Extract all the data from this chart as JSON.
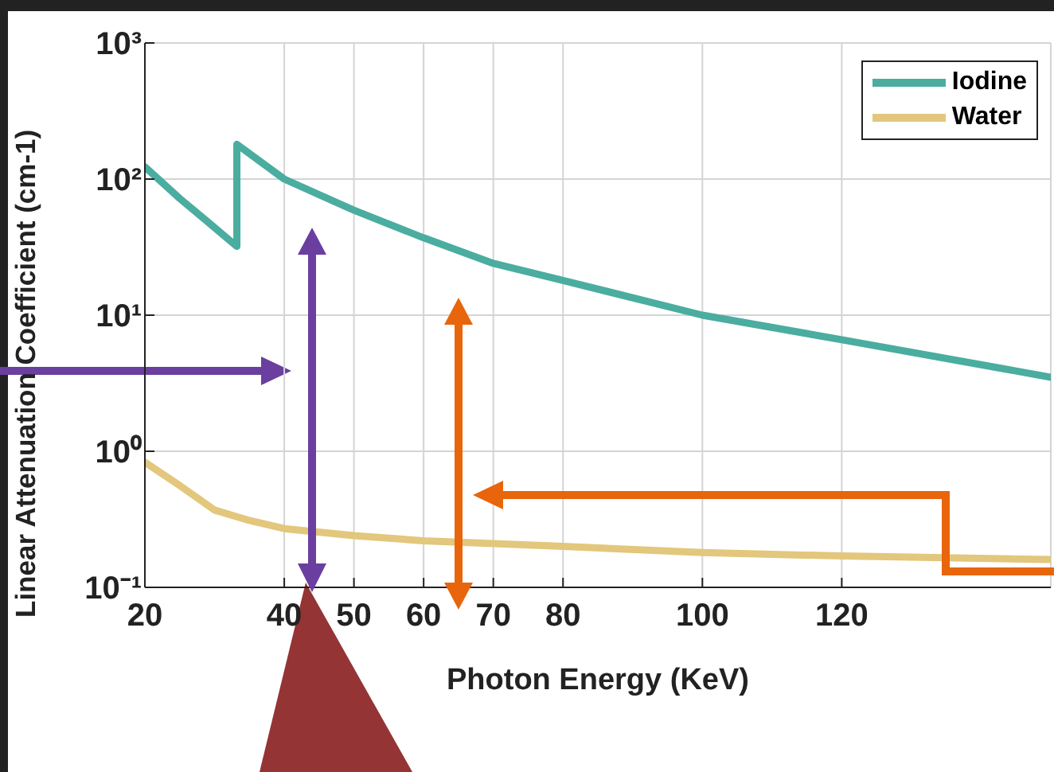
{
  "chart_data": {
    "type": "line",
    "xlabel": "Photon Energy (KeV)",
    "ylabel": "Linear Attenuation Coefficient (cm-1)",
    "xlim": [
      20,
      150
    ],
    "xticks": [
      20,
      40,
      50,
      60,
      70,
      80,
      100,
      120
    ],
    "ylim": [
      0.1,
      1000
    ],
    "yticks": [
      {
        "value": 0.1,
        "label": "10⁻¹"
      },
      {
        "value": 1,
        "label": "10⁰"
      },
      {
        "value": 10,
        "label": "10¹"
      },
      {
        "value": 100,
        "label": "10²"
      },
      {
        "value": 1000,
        "label": "10³"
      }
    ],
    "log": "y",
    "grid": true,
    "legend": "top right",
    "marker": "none",
    "line_style": "solid",
    "series": [
      {
        "name": "Iodine",
        "color": "#4aada0",
        "x": [
          20,
          25,
          30,
          33.2,
          33.2,
          40,
          50,
          60,
          70,
          80,
          100,
          120,
          150
        ],
        "values": [
          123,
          72,
          44,
          32,
          180,
          100,
          59,
          37,
          24,
          18,
          10,
          6.6,
          3.5
        ]
      },
      {
        "name": "Water",
        "color": "#e2c77c",
        "x": [
          20,
          25,
          30,
          35,
          40,
          50,
          60,
          80,
          100,
          120,
          150
        ],
        "values": [
          0.83,
          0.56,
          0.37,
          0.31,
          0.27,
          0.24,
          0.22,
          0.2,
          0.18,
          0.17,
          0.16
        ]
      }
    ]
  }
}
